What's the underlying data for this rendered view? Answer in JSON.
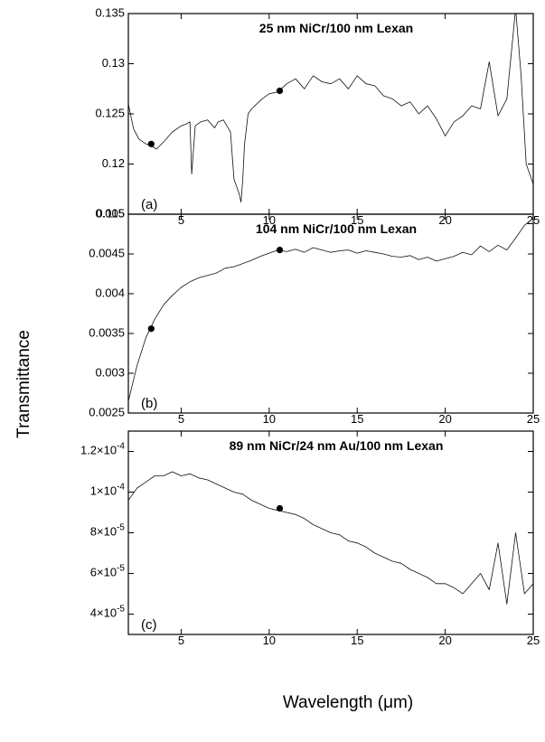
{
  "chart_data": [
    {
      "panel": "(a)",
      "type": "line",
      "title": "25 nm NiCr/100 nm Lexan",
      "xlim": [
        2,
        25
      ],
      "ylim": [
        0.115,
        0.135
      ],
      "xticks": [
        5,
        10,
        15,
        20,
        25
      ],
      "xtick_labels": [
        "5",
        "10",
        "15",
        "20",
        "25"
      ],
      "yticks": [
        0.115,
        0.12,
        0.125,
        0.13,
        0.135
      ],
      "ytick_labels": [
        "0.115",
        "0.12",
        "0.125",
        "0.13",
        "0.135"
      ],
      "series": [
        {
          "x": [
            2.0,
            2.3,
            2.6,
            3.0,
            3.3,
            3.6,
            4.0,
            4.5,
            5.0,
            5.3,
            5.5,
            5.6,
            5.8,
            6.1,
            6.5,
            6.9,
            7.1,
            7.4,
            7.8,
            8.0,
            8.3,
            8.4,
            8.5,
            8.6,
            8.8,
            9.0,
            9.3,
            9.6,
            10.0,
            10.5,
            11.0,
            11.5,
            12.0,
            12.5,
            13.0,
            13.5,
            14.0,
            14.5,
            15.0,
            15.5,
            16.0,
            16.5,
            17.0,
            17.5,
            18.0,
            18.5,
            19.0,
            19.5,
            20.0,
            20.5,
            21.0,
            21.5,
            22.0,
            22.5,
            23.0,
            23.5,
            24.0,
            24.3,
            24.6,
            25.0
          ],
          "y": [
            0.126,
            0.1235,
            0.1225,
            0.122,
            0.1218,
            0.1215,
            0.1222,
            0.1232,
            0.1238,
            0.124,
            0.1242,
            0.119,
            0.1238,
            0.1242,
            0.1244,
            0.1236,
            0.1242,
            0.1244,
            0.1232,
            0.1185,
            0.117,
            0.1162,
            0.1185,
            0.122,
            0.125,
            0.1255,
            0.126,
            0.1265,
            0.127,
            0.1272,
            0.128,
            0.1285,
            0.1275,
            0.1288,
            0.1282,
            0.128,
            0.1285,
            0.1275,
            0.1288,
            0.128,
            0.1278,
            0.1268,
            0.1265,
            0.1258,
            0.1262,
            0.125,
            0.1258,
            0.1245,
            0.1228,
            0.1242,
            0.1248,
            0.1258,
            0.1255,
            0.1302,
            0.1248,
            0.1265,
            0.1355,
            0.129,
            0.12,
            0.118
          ],
          "points": [
            {
              "x": 3.3,
              "y": 0.122
            },
            {
              "x": 10.6,
              "y": 0.1273
            }
          ]
        }
      ]
    },
    {
      "panel": "(b)",
      "type": "line",
      "title": "104 nm NiCr/100 nm Lexan",
      "xlim": [
        2,
        25
      ],
      "ylim": [
        0.0025,
        0.005
      ],
      "xticks": [
        5,
        10,
        15,
        20,
        25
      ],
      "xtick_labels": [
        "5",
        "10",
        "15",
        "20",
        "25"
      ],
      "yticks": [
        0.0025,
        0.003,
        0.0035,
        0.004,
        0.0045,
        0.005
      ],
      "ytick_labels": [
        "0.0025",
        "0.003",
        "0.0035",
        "0.004",
        "0.0045",
        "0.005"
      ],
      "series": [
        {
          "x": [
            2.0,
            2.5,
            3.0,
            3.5,
            4.0,
            4.5,
            5.0,
            5.5,
            6.0,
            6.5,
            7.0,
            7.5,
            8.0,
            8.5,
            9.0,
            9.5,
            10.0,
            10.5,
            11.0,
            11.5,
            12.0,
            12.5,
            13.0,
            13.5,
            14.0,
            14.5,
            15.0,
            15.5,
            16.0,
            16.5,
            17.0,
            17.5,
            18.0,
            18.5,
            19.0,
            19.5,
            20.0,
            20.5,
            21.0,
            21.5,
            22.0,
            22.5,
            23.0,
            23.5,
            24.0,
            24.5,
            25.0
          ],
          "y": [
            0.00265,
            0.0031,
            0.00345,
            0.00368,
            0.00386,
            0.00398,
            0.00408,
            0.00415,
            0.0042,
            0.00423,
            0.00426,
            0.00432,
            0.00434,
            0.00438,
            0.00442,
            0.00447,
            0.00451,
            0.00455,
            0.00453,
            0.00456,
            0.00452,
            0.00458,
            0.00455,
            0.00452,
            0.00454,
            0.00455,
            0.00451,
            0.00454,
            0.00452,
            0.0045,
            0.00447,
            0.00446,
            0.00448,
            0.00443,
            0.00446,
            0.00441,
            0.00444,
            0.00447,
            0.00452,
            0.00449,
            0.0046,
            0.00453,
            0.00461,
            0.00455,
            0.0047,
            0.00486,
            0.00495
          ],
          "points": [
            {
              "x": 3.3,
              "y": 0.00356
            },
            {
              "x": 10.6,
              "y": 0.00455
            }
          ]
        }
      ]
    },
    {
      "panel": "(c)",
      "type": "line",
      "title": "89 nm NiCr/24 nm Au/100 nm Lexan",
      "xlim": [
        2,
        25
      ],
      "ylim": [
        3e-05,
        0.00013
      ],
      "xticks": [
        5,
        10,
        15,
        20,
        25
      ],
      "xtick_labels": [
        "5",
        "10",
        "15",
        "20",
        "25"
      ],
      "yticks": [
        4e-05,
        6e-05,
        8e-05,
        0.0001,
        0.00012
      ],
      "ytick_labels": [
        "4x10^-5",
        "6x10^-5",
        "8x10^-5",
        "1x10^-4",
        "1.2x10^-4"
      ],
      "series": [
        {
          "x": [
            2.0,
            2.5,
            3.0,
            3.5,
            4.0,
            4.5,
            5.0,
            5.5,
            6.0,
            6.5,
            7.0,
            7.5,
            8.0,
            8.5,
            9.0,
            9.5,
            10.0,
            10.5,
            11.0,
            11.5,
            12.0,
            12.5,
            13.0,
            13.5,
            14.0,
            14.5,
            15.0,
            15.5,
            16.0,
            16.5,
            17.0,
            17.5,
            18.0,
            18.5,
            19.0,
            19.5,
            20.0,
            20.5,
            21.0,
            21.5,
            22.0,
            22.5,
            23.0,
            23.5,
            24.0,
            24.5,
            25.0
          ],
          "y": [
            9.6e-05,
            0.000102,
            0.000105,
            0.000108,
            0.000108,
            0.00011,
            0.000108,
            0.000109,
            0.000107,
            0.000106,
            0.000104,
            0.000102,
            0.0001,
            9.9e-05,
            9.6e-05,
            9.4e-05,
            9.2e-05,
            9.1e-05,
            9e-05,
            8.9e-05,
            8.7e-05,
            8.4e-05,
            8.2e-05,
            8e-05,
            7.9e-05,
            7.6e-05,
            7.5e-05,
            7.3e-05,
            7e-05,
            6.8e-05,
            6.6e-05,
            6.5e-05,
            6.2e-05,
            6e-05,
            5.8e-05,
            5.5e-05,
            5.5e-05,
            5.3e-05,
            5e-05,
            5.5e-05,
            6e-05,
            5.2e-05,
            7.5e-05,
            4.5e-05,
            8e-05,
            5e-05,
            5.5e-05
          ],
          "points": [
            {
              "x": 10.6,
              "y": 9.2e-05
            }
          ]
        }
      ]
    }
  ],
  "ylabel": "Transmittance",
  "xlabel": "Wavelength (μm)"
}
